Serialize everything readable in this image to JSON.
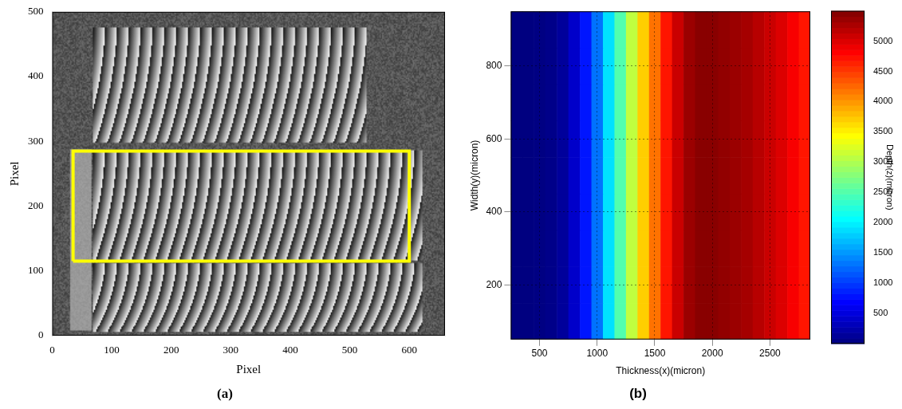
{
  "chart_data": [
    {
      "type": "image",
      "title": "(a)",
      "xlabel": "Pixel",
      "ylabel": "Pixel",
      "xlim": [
        0,
        660
      ],
      "ylim": [
        0,
        500
      ],
      "xticks": [
        0,
        100,
        200,
        300,
        400,
        500,
        600
      ],
      "yticks": [
        0,
        100,
        200,
        300,
        400,
        500
      ],
      "grid": false,
      "annotations": [
        {
          "shape": "rectangle",
          "x": [
            35,
            600
          ],
          "y": [
            115,
            285
          ],
          "color": "#ffff00"
        }
      ]
    },
    {
      "type": "heatmap",
      "title": "(b)",
      "xlabel": "Thickness(x)(micron)",
      "ylabel": "Width(y)(micron)",
      "zlabel": "Depth(z)(micron)",
      "x": [
        300,
        400,
        500,
        600,
        700,
        800,
        900,
        1000,
        1100,
        1200,
        1300,
        1400,
        1500,
        1600,
        1700,
        1800,
        1900,
        2000,
        2100,
        2200,
        2300,
        2400,
        2500,
        2600,
        2700,
        2800
      ],
      "y": [
        100,
        200,
        300,
        400,
        500,
        600,
        700,
        800,
        900
      ],
      "z": [
        [
          0,
          0,
          20,
          50,
          150,
          400,
          800,
          1300,
          1900,
          2500,
          3100,
          3700,
          4200,
          4700,
          5100,
          5350,
          5450,
          5450,
          5400,
          5350,
          5300,
          5200,
          5100,
          5000,
          4850,
          4700
        ],
        [
          0,
          0,
          20,
          50,
          150,
          400,
          800,
          1300,
          1900,
          2500,
          3100,
          3700,
          4200,
          4700,
          5100,
          5350,
          5450,
          5450,
          5400,
          5350,
          5300,
          5200,
          5100,
          5000,
          4850,
          4700
        ],
        [
          0,
          0,
          20,
          50,
          150,
          400,
          800,
          1300,
          1900,
          2500,
          3100,
          3700,
          4200,
          4700,
          5100,
          5350,
          5450,
          5450,
          5400,
          5350,
          5300,
          5200,
          5100,
          5000,
          4850,
          4700
        ],
        [
          0,
          0,
          20,
          50,
          150,
          400,
          800,
          1300,
          1900,
          2500,
          3100,
          3700,
          4200,
          4700,
          5100,
          5350,
          5450,
          5450,
          5400,
          5350,
          5300,
          5200,
          5100,
          5000,
          4850,
          4700
        ],
        [
          0,
          0,
          20,
          50,
          150,
          400,
          800,
          1300,
          1900,
          2500,
          3100,
          3700,
          4200,
          4700,
          5100,
          5350,
          5450,
          5450,
          5400,
          5350,
          5300,
          5200,
          5100,
          5000,
          4850,
          4700
        ],
        [
          0,
          0,
          20,
          50,
          150,
          400,
          800,
          1300,
          1900,
          2500,
          3100,
          3700,
          4200,
          4700,
          5100,
          5350,
          5450,
          5450,
          5400,
          5350,
          5300,
          5200,
          5100,
          5000,
          4850,
          4700
        ],
        [
          0,
          0,
          20,
          50,
          150,
          400,
          800,
          1300,
          1900,
          2500,
          3100,
          3700,
          4200,
          4700,
          5100,
          5350,
          5450,
          5450,
          5400,
          5350,
          5300,
          5200,
          5100,
          5000,
          4850,
          4700
        ],
        [
          0,
          0,
          20,
          50,
          150,
          400,
          800,
          1300,
          1900,
          2500,
          3100,
          3700,
          4200,
          4700,
          5100,
          5350,
          5450,
          5450,
          5400,
          5350,
          5300,
          5200,
          5100,
          5000,
          4850,
          4700
        ],
        [
          0,
          0,
          20,
          50,
          150,
          400,
          800,
          1300,
          1900,
          2500,
          3100,
          3700,
          4200,
          4700,
          5100,
          5350,
          5450,
          5450,
          5400,
          5350,
          5300,
          5200,
          5100,
          5000,
          4850,
          4700
        ]
      ],
      "xlim": [
        250,
        2850
      ],
      "ylim": [
        50,
        950
      ],
      "xticks": [
        500,
        1000,
        1500,
        2000,
        2500
      ],
      "yticks": [
        200,
        400,
        600,
        800
      ],
      "grid": true,
      "colorbar": {
        "lim": [
          0,
          5500
        ],
        "ticks": [
          500,
          1000,
          1500,
          2000,
          2500,
          3000,
          3500,
          4000,
          4500,
          5000
        ]
      }
    }
  ]
}
